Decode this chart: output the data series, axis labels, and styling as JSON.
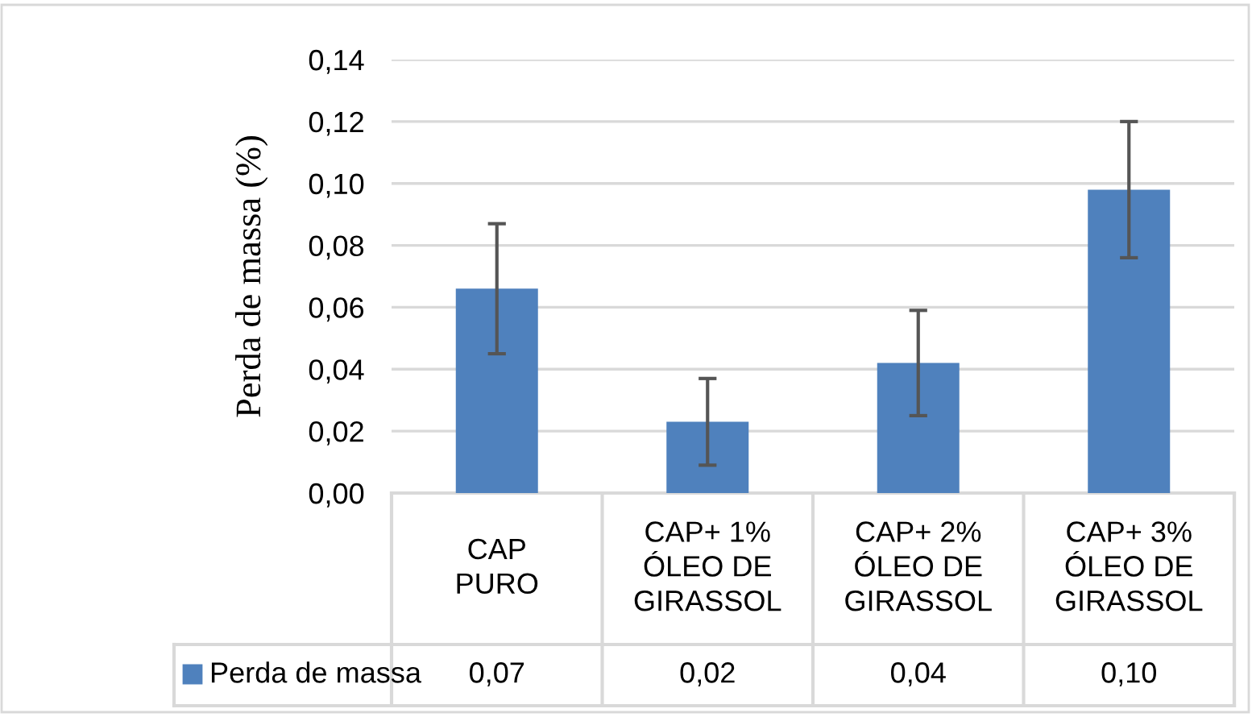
{
  "chart_data": {
    "type": "bar",
    "ylabel": "Perda de massa (%)",
    "categories": [
      "CAP\nPURO",
      "CAP+ 1%\nÓLEO DE\nGIRASSOL",
      "CAP+ 2%\nÓLEO DE\nGIRASSOL",
      "CAP+ 3%\nÓLEO DE\nGIRASSOL"
    ],
    "series": [
      {
        "name": "Perda de massa",
        "color": "#4f81bd",
        "values": [
          0.066,
          0.023,
          0.042,
          0.098
        ],
        "errors": [
          0.021,
          0.014,
          0.017,
          0.022
        ],
        "value_labels": [
          "0,07",
          "0,02",
          "0,04",
          "0,10"
        ]
      }
    ],
    "ylim": [
      0,
      0.14
    ],
    "yticks": [
      {
        "value": 0,
        "label": "0,00"
      },
      {
        "value": 0.02,
        "label": "0,02"
      },
      {
        "value": 0.04,
        "label": "0,04"
      },
      {
        "value": 0.06,
        "label": "0,06"
      },
      {
        "value": 0.08,
        "label": "0,08"
      },
      {
        "value": 0.1,
        "label": "0,10"
      },
      {
        "value": 0.12,
        "label": "0,12"
      },
      {
        "value": 0.14,
        "label": "0,14"
      }
    ],
    "grid": "y",
    "legend": "bottom"
  }
}
